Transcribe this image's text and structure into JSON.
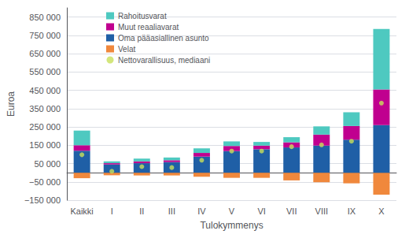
{
  "chart_data": {
    "type": "bar",
    "stacked": true,
    "grid": true,
    "legend": "upper left",
    "background_color": "#ffffff",
    "xlabel": "Tulokymmenys",
    "ylabel": "Euroa",
    "categories": [
      "Kaikki",
      "I",
      "II",
      "III",
      "IV",
      "V",
      "VI",
      "VII",
      "VIII",
      "IX",
      "X"
    ],
    "series": [
      {
        "name": "Rahoitusvarat",
        "type": "bar",
        "color": "#4ec9c0",
        "values": [
          80000,
          10000,
          15000,
          15000,
          25000,
          25000,
          20000,
          28000,
          45000,
          75000,
          330000
        ]
      },
      {
        "name": "Muut reaaliavarat",
        "type": "bar",
        "color": "#c0008f",
        "values": [
          30000,
          7000,
          10000,
          10000,
          20000,
          28000,
          20000,
          28000,
          60000,
          75000,
          195000
        ]
      },
      {
        "name": "Oma pääasiallinen asunto",
        "type": "bar",
        "color": "#1f5fa6",
        "values": [
          120000,
          45000,
          52000,
          58000,
          88000,
          118000,
          128000,
          138000,
          148000,
          180000,
          260000
        ]
      },
      {
        "name": "Velat",
        "type": "bar",
        "color": "#f0883c",
        "values": [
          -30000,
          -14000,
          -15000,
          -15000,
          -22000,
          -28000,
          -28000,
          -42000,
          -52000,
          -58000,
          -120000
        ]
      },
      {
        "name": "Nettovarallisuus, mediaani",
        "type": "scatter",
        "marker": "circle",
        "color": "#c8e05a",
        "values": [
          98000,
          8000,
          33000,
          28000,
          68000,
          118000,
          118000,
          142000,
          152000,
          172000,
          380000
        ]
      }
    ],
    "ylim": [
      -150000,
      900000
    ],
    "yticks": [
      {
        "value": -150000,
        "label": "−150 000"
      },
      {
        "value": -50000,
        "label": "−50 000"
      },
      {
        "value": 50000,
        "label": "50 000"
      },
      {
        "value": 150000,
        "label": "150 000"
      },
      {
        "value": 250000,
        "label": "250 000"
      },
      {
        "value": 350000,
        "label": "350 000"
      },
      {
        "value": 450000,
        "label": "450 000"
      },
      {
        "value": 550000,
        "label": "550 000"
      },
      {
        "value": 650000,
        "label": "650 000"
      },
      {
        "value": 750000,
        "label": "750 000"
      },
      {
        "value": 850000,
        "label": "850 000"
      }
    ]
  }
}
